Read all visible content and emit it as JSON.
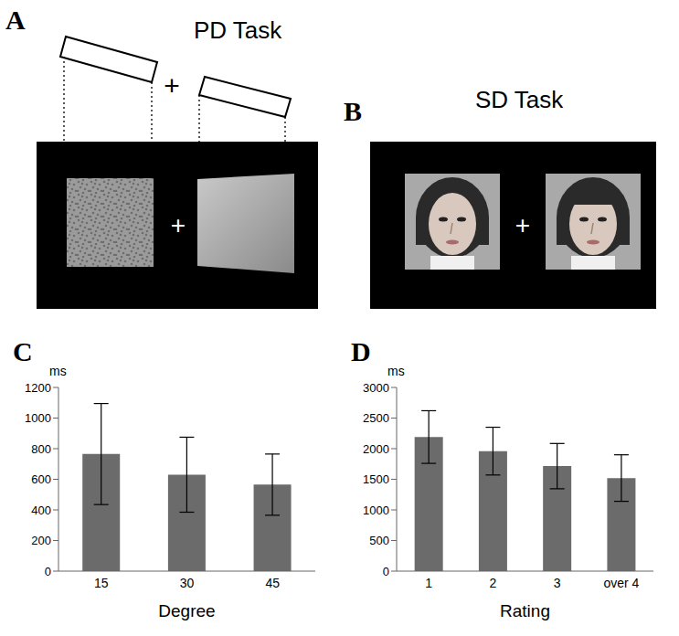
{
  "panels": {
    "A": {
      "label": "A",
      "title": "PD Task",
      "fixation": "+"
    },
    "B": {
      "label": "B",
      "title": "SD Task",
      "fixation": "+"
    }
  },
  "chart_data": [
    {
      "type": "bar",
      "panel": "C",
      "ylabel": "ms",
      "xlabel": "Degree",
      "categories": [
        "15",
        "30",
        "45"
      ],
      "values": [
        765,
        630,
        565
      ],
      "errors": [
        330,
        245,
        200
      ],
      "color": "#6b6b6b",
      "ylim": [
        0,
        1200
      ],
      "yticks": [
        0,
        200,
        400,
        600,
        800,
        1000,
        1200
      ],
      "grid": false
    },
    {
      "type": "bar",
      "panel": "D",
      "ylabel": "ms",
      "xlabel": "Rating",
      "categories": [
        "1",
        "2",
        "3",
        "over 4"
      ],
      "values": [
        2190,
        1960,
        1715,
        1520
      ],
      "errors": [
        430,
        390,
        370,
        380
      ],
      "color": "#6b6b6b",
      "ylim": [
        0,
        3000
      ],
      "yticks": [
        0,
        500,
        1000,
        1500,
        2000,
        2500,
        3000
      ],
      "grid": false
    }
  ]
}
